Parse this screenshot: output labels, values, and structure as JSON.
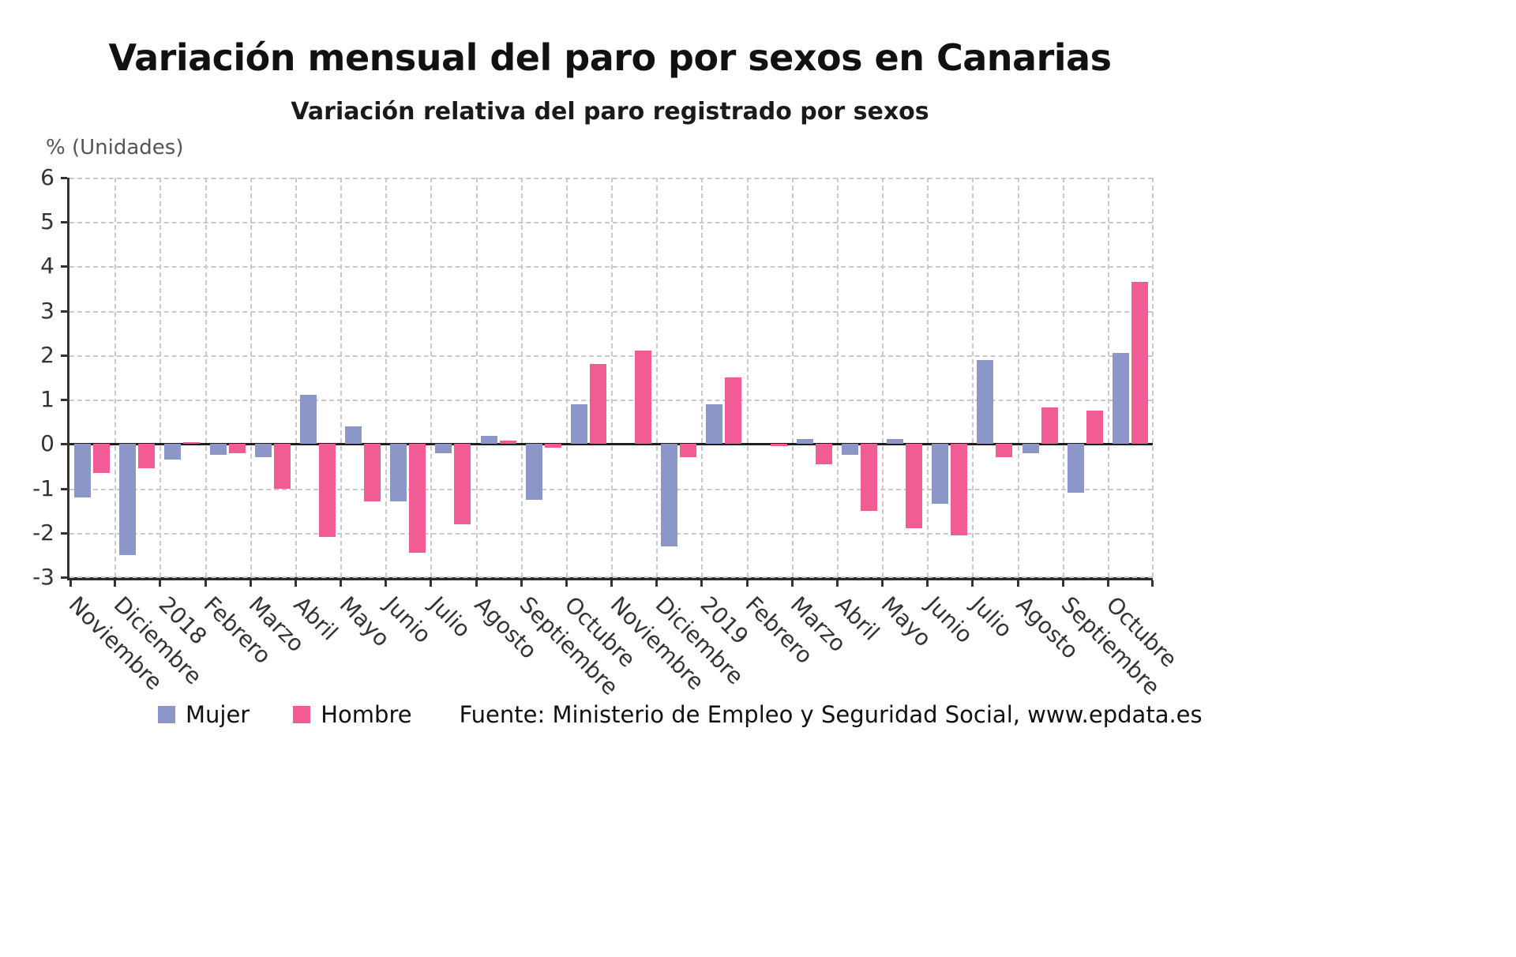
{
  "title": "Variación mensual del paro por sexos en Canarias",
  "subtitle": "Variación relativa del paro registrado por sexos",
  "y_unit_label": "% (Unidades)",
  "source": "Fuente: Ministerio de Empleo y Seguridad Social, www.epdata.es",
  "chart_data": {
    "type": "bar",
    "title": "Variación mensual del paro por sexos en Canarias",
    "subtitle": "Variación relativa del paro registrado por sexos",
    "ylabel": "% (Unidades)",
    "ylim": [
      -3,
      6
    ],
    "ytick_step": 1,
    "grid": "dashed",
    "legend_position": "bottom",
    "categories": [
      "Noviembre",
      "Diciembre",
      "2018",
      "Febrero",
      "Marzo",
      "Abril",
      "Mayo",
      "Junio",
      "Julio",
      "Agosto",
      "Septiembre",
      "Octubre",
      "Noviembre",
      "Diciembre",
      "2019",
      "Febrero",
      "Marzo",
      "Abril",
      "Mayo",
      "Junio",
      "Julio",
      "Agosto",
      "Septiembre",
      "Octubre"
    ],
    "series": [
      {
        "name": "Mujer",
        "color": "#8d96c8",
        "values": [
          -1.2,
          -2.5,
          -0.35,
          -0.25,
          -0.3,
          1.1,
          0.4,
          -1.3,
          -0.2,
          0.18,
          -1.25,
          0.9,
          0,
          -2.3,
          0.9,
          0,
          0.12,
          -0.25,
          0.12,
          -1.35,
          1.9,
          -0.2,
          -1.1,
          2.05
        ]
      },
      {
        "name": "Hombre",
        "color": "#f25c94",
        "values": [
          -0.65,
          -0.55,
          0.05,
          -0.2,
          -1.0,
          -2.1,
          -1.3,
          -2.45,
          -1.8,
          0.08,
          -0.08,
          1.8,
          2.1,
          -0.3,
          1.5,
          -0.05,
          -0.45,
          -1.5,
          -1.9,
          -2.05,
          -0.3,
          0.82,
          0.75,
          3.65
        ]
      }
    ]
  }
}
